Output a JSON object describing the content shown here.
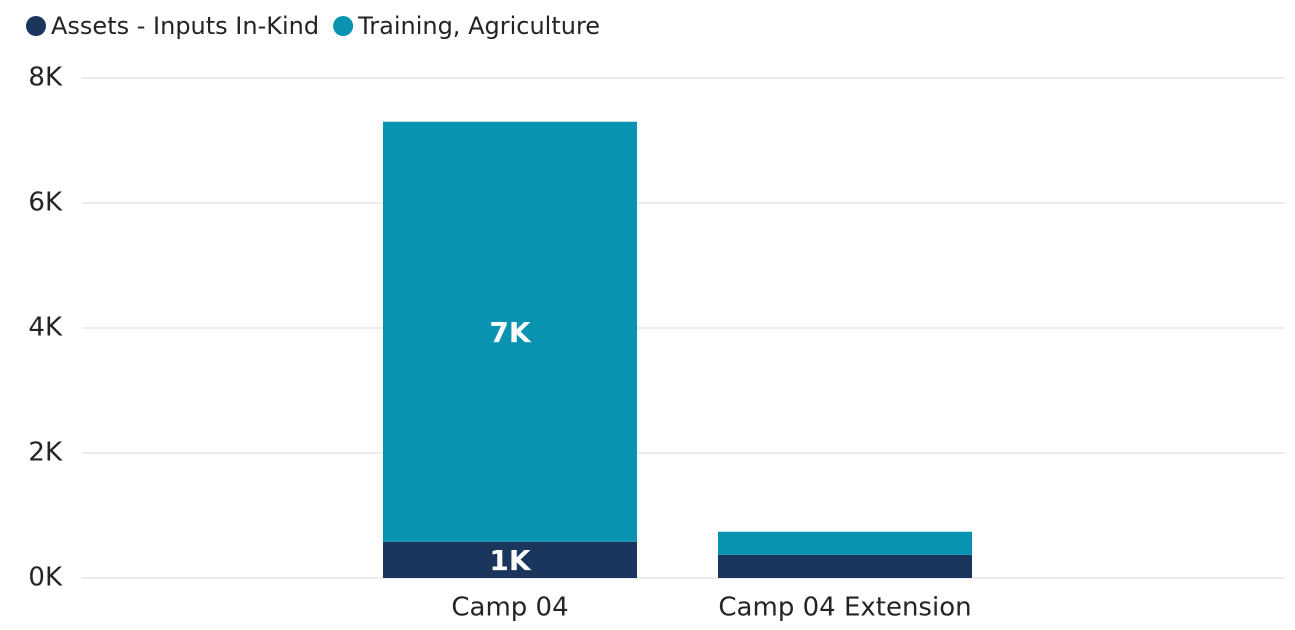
{
  "chart_data": {
    "type": "stacked_bar",
    "categories": [
      "Camp 04",
      "Camp 04 Extension"
    ],
    "series": [
      {
        "name": "Assets - Inputs In-Kind",
        "color": "#1a365d",
        "values": [
          580,
          370
        ],
        "value_labels": [
          "1K",
          null
        ]
      },
      {
        "name": "Training, Agriculture",
        "color": "#0993b0",
        "values": [
          6720,
          370
        ],
        "value_labels": [
          "7K",
          null
        ]
      }
    ],
    "ylim": [
      0,
      8000
    ],
    "yticks": [
      {
        "value": 0,
        "label": "0K"
      },
      {
        "value": 2000,
        "label": "2K"
      },
      {
        "value": 4000,
        "label": "4K"
      },
      {
        "value": 6000,
        "label": "6K"
      },
      {
        "value": 8000,
        "label": "8K"
      }
    ],
    "grid": true,
    "legend": "top-left"
  }
}
